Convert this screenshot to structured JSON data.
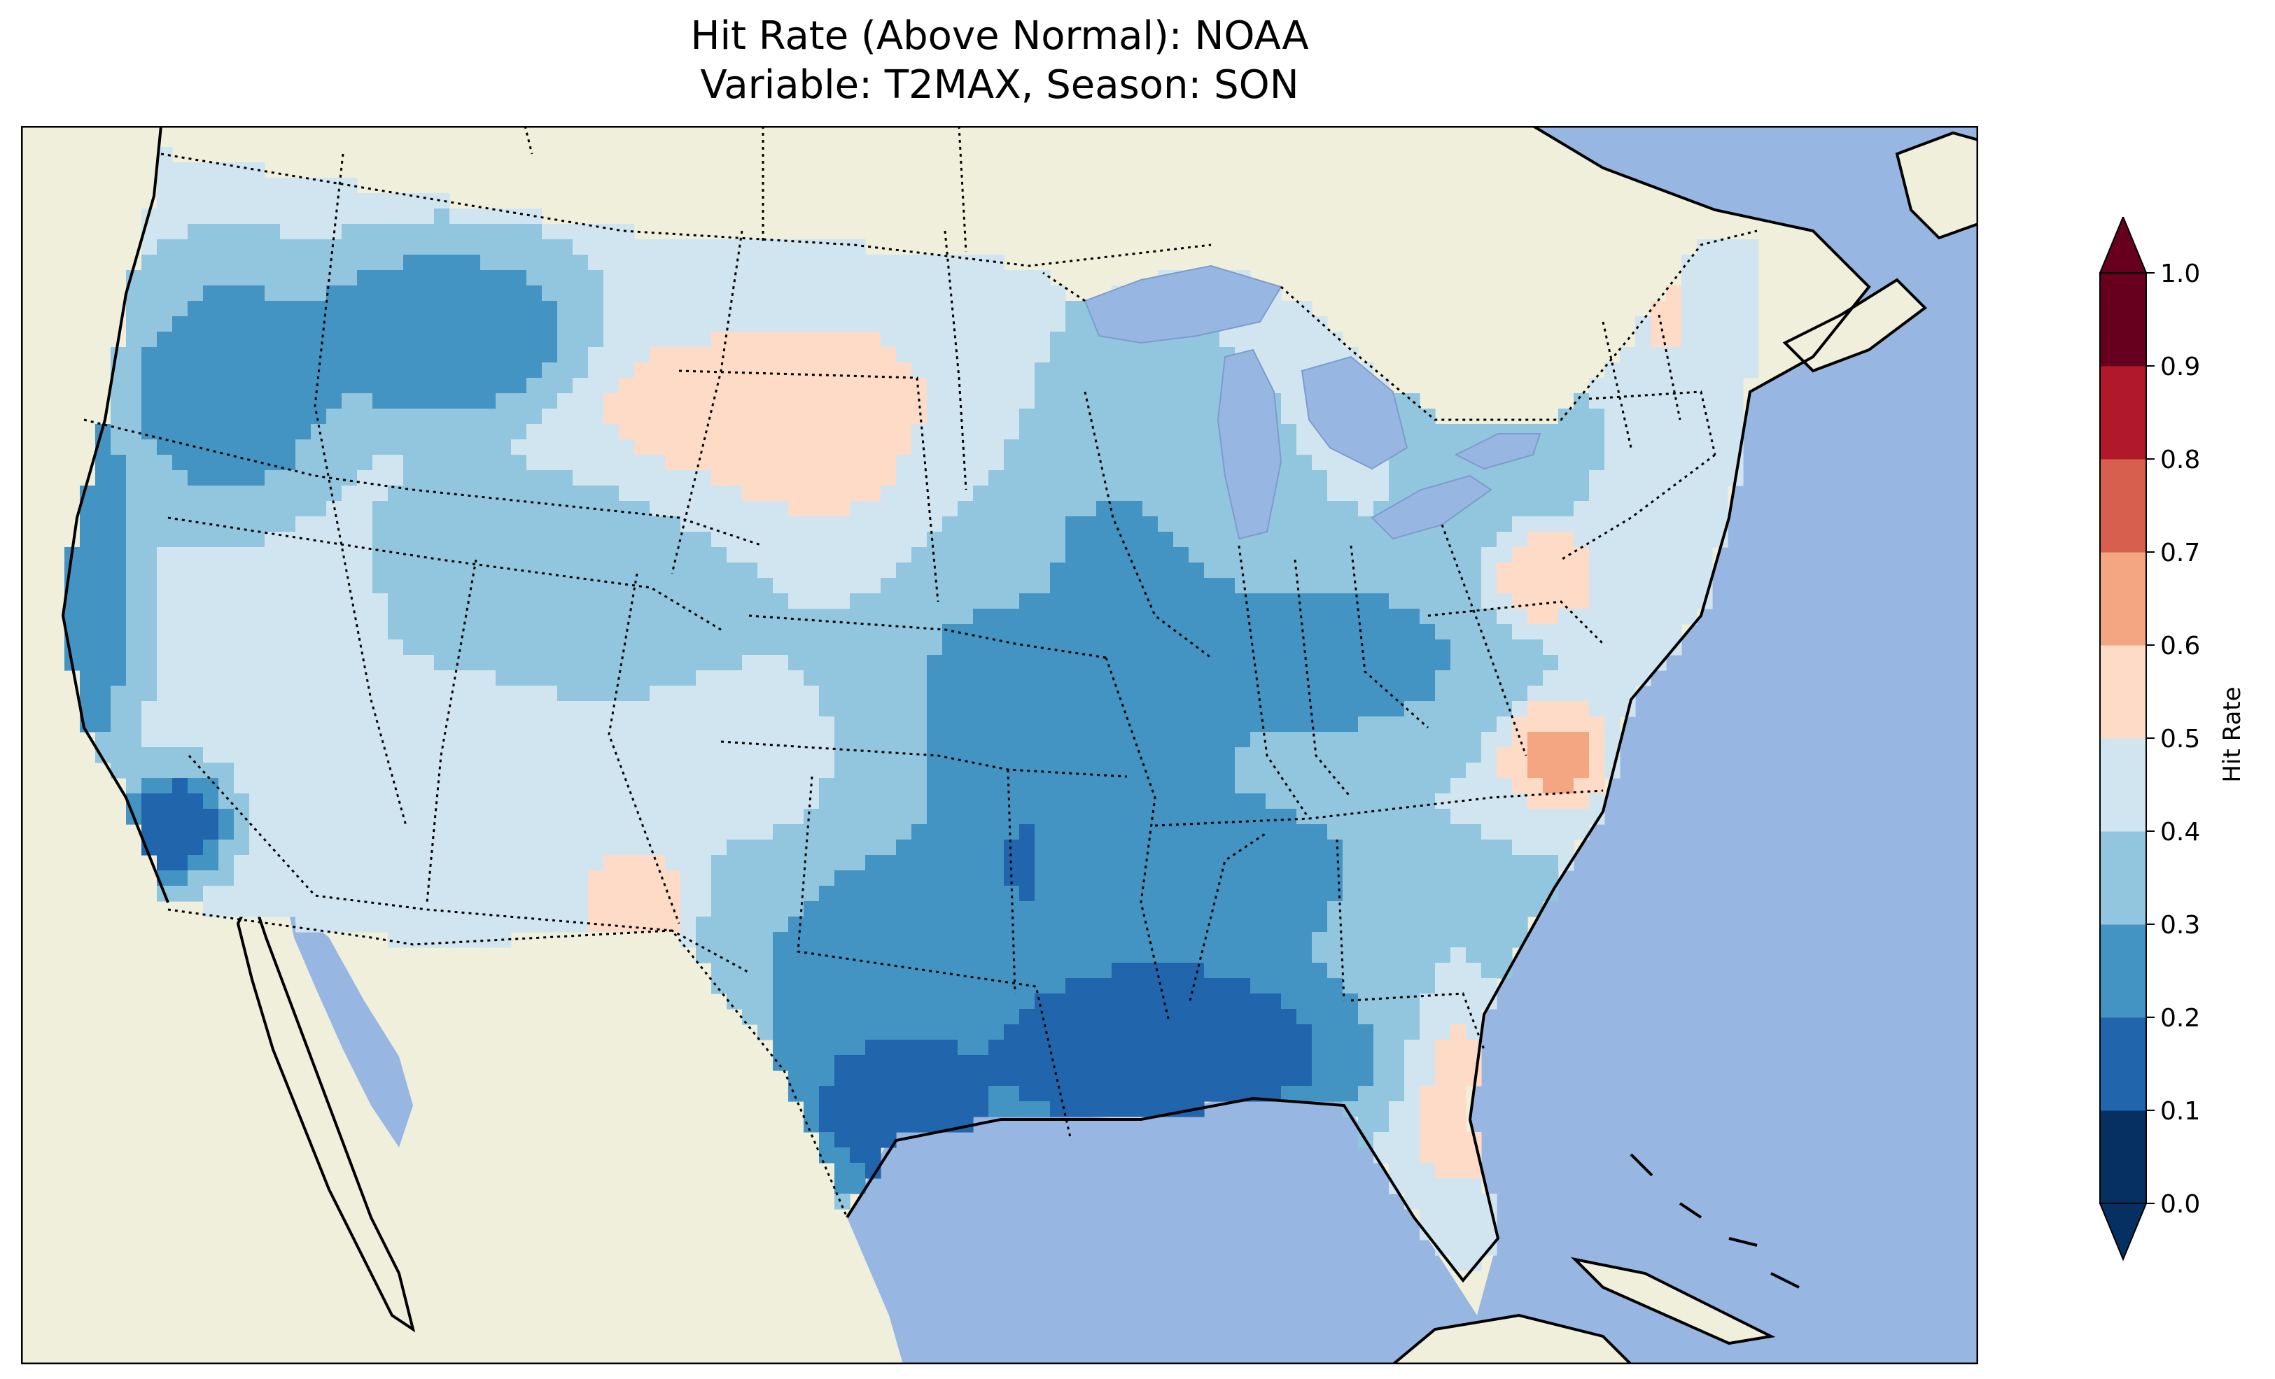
{
  "title_line1": "Hit Rate (Above Normal): NOAA",
  "title_line2": "Variable: T2MAX, Season: SON",
  "colorbar": {
    "label": "Hit Rate",
    "ticks": [
      "0.0",
      "0.1",
      "0.2",
      "0.3",
      "0.4",
      "0.5",
      "0.6",
      "0.7",
      "0.8",
      "0.9",
      "1.0"
    ],
    "extend": "both",
    "colors": [
      "#053061",
      "#2166ac",
      "#4393c3",
      "#92c5de",
      "#d1e5f0",
      "#fddbc7",
      "#f4a582",
      "#d6604d",
      "#b2182b",
      "#67001f"
    ]
  },
  "map": {
    "ocean_color": "#97b6e1",
    "land_color": "#efefdb",
    "features": [
      "coastlines",
      "country-borders",
      "state-borders",
      "lakes"
    ]
  }
}
